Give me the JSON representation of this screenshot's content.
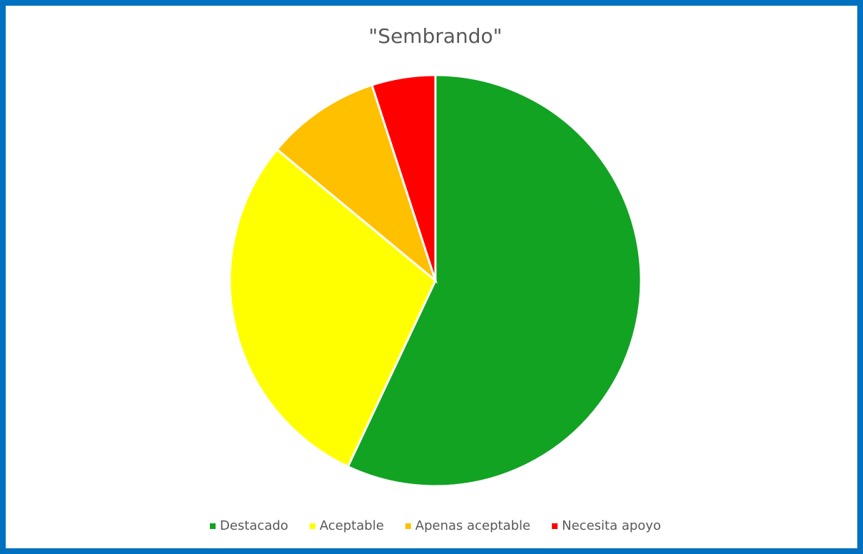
{
  "chart_data": {
    "type": "pie",
    "title": "\"Sembrando\"",
    "categories": [
      "Destacado",
      "Aceptable",
      "Apenas aceptable",
      "Necesita apoyo"
    ],
    "values": [
      57,
      29,
      9,
      5
    ],
    "colors": [
      "#12a323",
      "#ffff00",
      "#ffc000",
      "#ff0000"
    ],
    "legend": "bottom"
  }
}
